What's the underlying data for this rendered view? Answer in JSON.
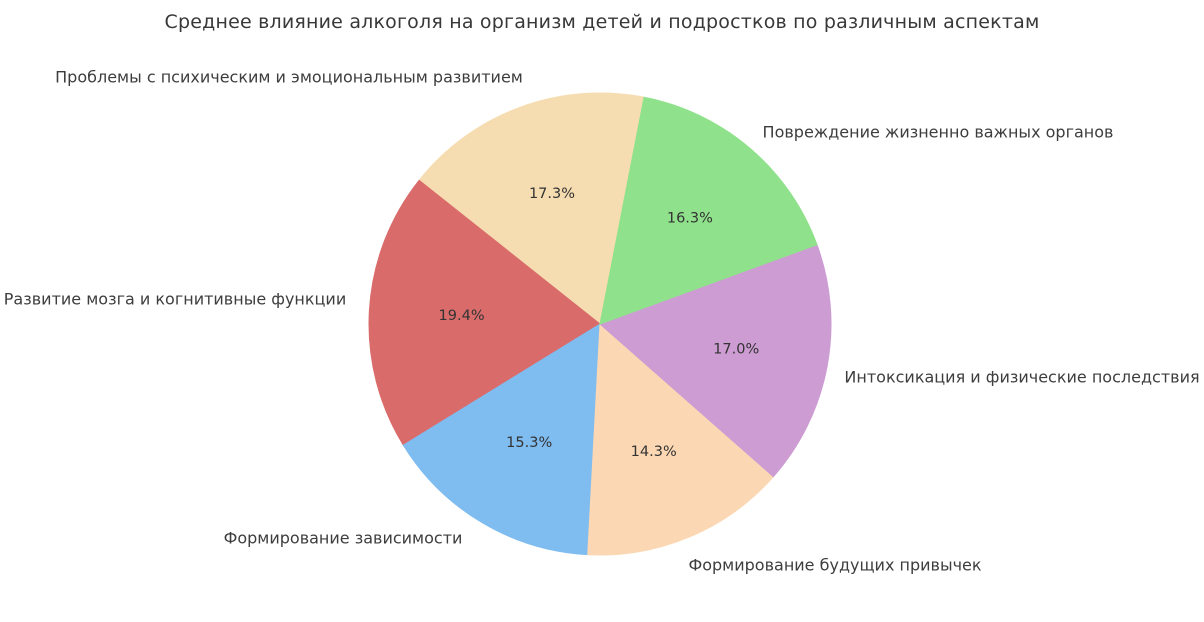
{
  "chart": {
    "title": "Среднее влияние алкоголя на организм детей и подростков по различным аспектам"
  },
  "chart_data": {
    "type": "pie",
    "title": "Среднее влияние алкоголя на организм детей и подростков по различным аспектам",
    "legend": "none",
    "label_position": "outside",
    "percent_distance": 0.6,
    "start_angle_deg": 79,
    "direction": "counterclockwise",
    "slices": [
      {
        "label": "Проблемы с психическим и эмоциональным развитием",
        "value": 17.3,
        "percent_label": "17.3%",
        "color": "#f6ddb1"
      },
      {
        "label": "Развитие мозга и когнитивные функции",
        "value": 19.4,
        "percent_label": "19.4%",
        "color": "#d96c6b"
      },
      {
        "label": "Формирование зависимости",
        "value": 15.3,
        "percent_label": "15.3%",
        "color": "#7fbcf0"
      },
      {
        "label": "Формирование будущих привычек",
        "value": 14.3,
        "percent_label": "14.3%",
        "color": "#fbd8b3"
      },
      {
        "label": "Интоксикация и физические последствия",
        "value": 17.0,
        "percent_label": "17.0%",
        "color": "#cd9cd3"
      },
      {
        "label": "Повреждение жизненно важных органов",
        "value": 16.3,
        "percent_label": "16.3%",
        "color": "#8fe28b"
      }
    ]
  }
}
